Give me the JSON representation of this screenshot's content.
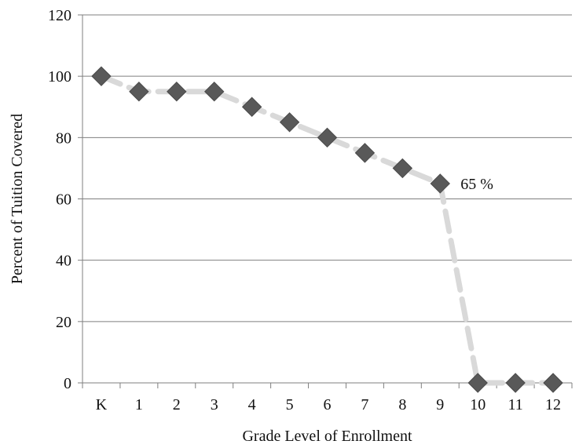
{
  "chart_data": {
    "type": "line",
    "title": "",
    "xlabel": "Grade Level of Enrollment",
    "ylabel": "Percent of Tuition Covered",
    "categories": [
      "K",
      "1",
      "2",
      "3",
      "4",
      "5",
      "6",
      "7",
      "8",
      "9",
      "10",
      "11",
      "12"
    ],
    "series": [
      {
        "values": [
          100,
          95,
          95,
          95,
          90,
          85,
          80,
          75,
          70,
          65,
          0,
          0,
          0
        ]
      }
    ],
    "ylim": [
      0,
      120
    ],
    "yticks": [
      0,
      20,
      40,
      60,
      80,
      100,
      120
    ],
    "grid": true,
    "legend": "none",
    "annotations": [
      {
        "text": "65 %",
        "category": "9",
        "value": 65
      }
    ],
    "colors": {
      "marker": "#595959",
      "line": "#d9d9d9",
      "grid": "#7f7f7f",
      "axis": "#7f7f7f",
      "text": "#111111"
    }
  }
}
